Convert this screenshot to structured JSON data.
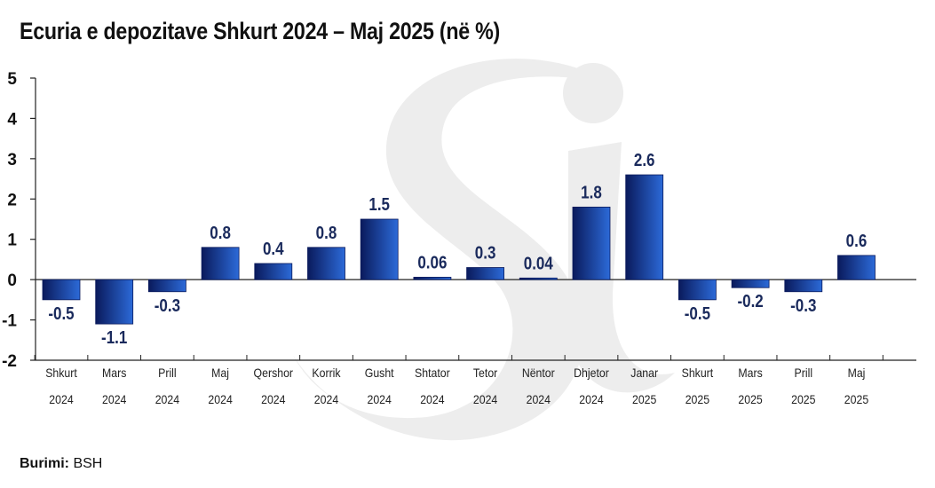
{
  "title": "Ecuria e depozitave Shkurt 2024 – Maj 2025 (në %)",
  "source": {
    "label": "Burimi:",
    "value": "BSH"
  },
  "colors": {
    "bar_dark": "#0a1a5c",
    "bar_light": "#2c6ad8",
    "axis": "#222222",
    "label": "#1a2a5c",
    "watermark": "#ededed"
  },
  "chart_data": {
    "type": "bar",
    "title": "Ecuria e depozitave Shkurt 2024 – Maj 2025 (në %)",
    "categories": [
      {
        "month": "Shkurt",
        "year": "2024"
      },
      {
        "month": "Mars",
        "year": "2024"
      },
      {
        "month": "Prill",
        "year": "2024"
      },
      {
        "month": "Maj",
        "year": "2024"
      },
      {
        "month": "Qershor",
        "year": "2024"
      },
      {
        "month": "Korrik",
        "year": "2024"
      },
      {
        "month": "Gusht",
        "year": "2024"
      },
      {
        "month": "Shtator",
        "year": "2024"
      },
      {
        "month": "Tetor",
        "year": "2024"
      },
      {
        "month": "Nëntor",
        "year": "2024"
      },
      {
        "month": "Dhjetor",
        "year": "2024"
      },
      {
        "month": "Janar",
        "year": "2025"
      },
      {
        "month": "Shkurt",
        "year": "2025"
      },
      {
        "month": "Mars",
        "year": "2025"
      },
      {
        "month": "Prill",
        "year": "2025"
      },
      {
        "month": "Maj",
        "year": "2025"
      }
    ],
    "values": [
      -0.5,
      -1.1,
      -0.3,
      0.8,
      0.4,
      0.8,
      1.5,
      0.06,
      0.3,
      0.04,
      1.8,
      2.6,
      -0.5,
      -0.2,
      -0.3,
      0.6
    ],
    "value_labels": [
      "-0.5",
      "-1.1",
      "-0.3",
      "0.8",
      "0.4",
      "0.8",
      "1.5",
      "0.06",
      "0.3",
      "0.04",
      "1.8",
      "2.6",
      "-0.5",
      "-0.2",
      "-0.3",
      "0.6"
    ],
    "ylim": [
      -2,
      5
    ],
    "yticks": [
      -2,
      -1,
      0,
      1,
      2,
      3,
      4,
      5
    ],
    "ytick_labels": [
      "-2",
      "-1",
      "0",
      "1",
      "2",
      "3",
      "4",
      "5"
    ],
    "grid": false,
    "legend": "none"
  }
}
